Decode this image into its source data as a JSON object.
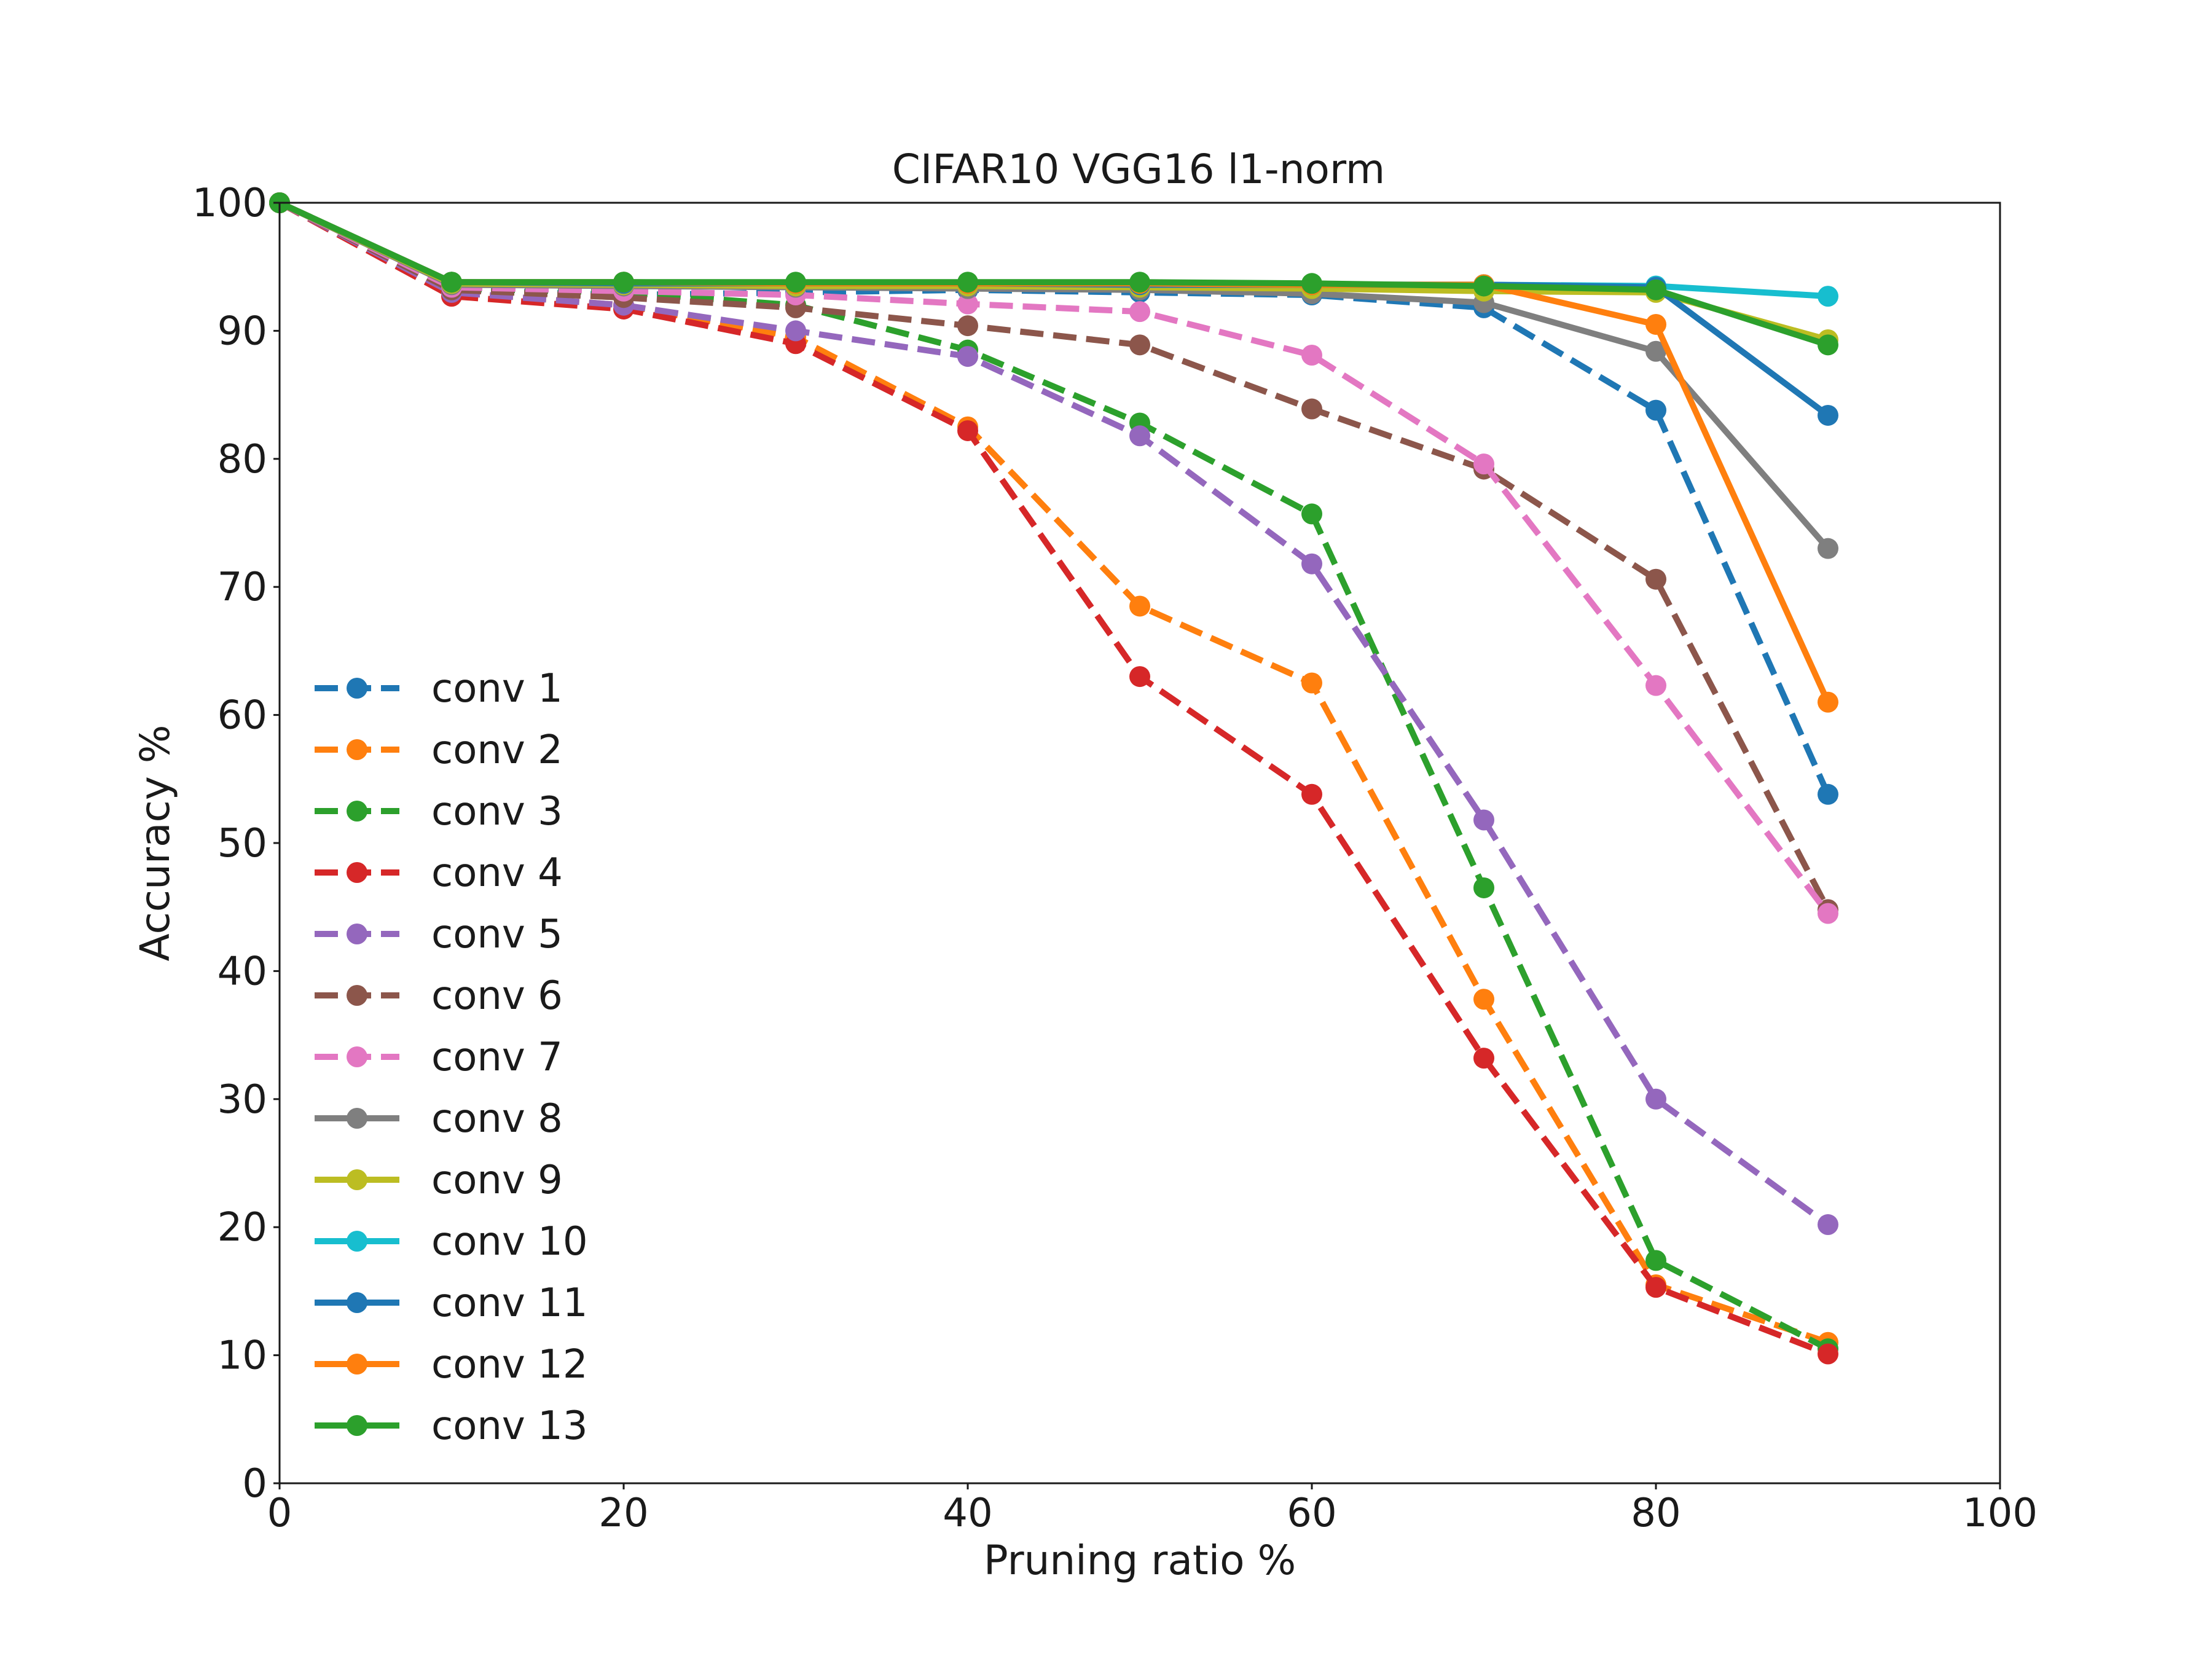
{
  "chart_data": {
    "type": "line",
    "title": "CIFAR10 VGG16 l1-norm",
    "xlabel": "Pruning ratio %",
    "ylabel": "Accuracy %",
    "xlim": [
      0,
      100
    ],
    "ylim": [
      0,
      100
    ],
    "xticks": [
      "0",
      "20",
      "40",
      "60",
      "80",
      "100"
    ],
    "yticks": [
      "0",
      "10",
      "20",
      "30",
      "40",
      "50",
      "60",
      "70",
      "80",
      "90",
      "100"
    ],
    "grid": false,
    "legend_position": "lower-left",
    "x": [
      0,
      10,
      20,
      30,
      40,
      50,
      60,
      70,
      80,
      90
    ],
    "series": [
      {
        "name": "conv 1",
        "color": "#1f77b4",
        "style": "dashed",
        "values": [
          100,
          93.2,
          92.8,
          93.0,
          93.2,
          93.0,
          92.8,
          91.8,
          83.8,
          53.8
        ]
      },
      {
        "name": "conv 2",
        "color": "#ff7f0e",
        "style": "dashed",
        "values": [
          100,
          93.0,
          92.0,
          89.5,
          82.5,
          68.5,
          62.5,
          37.8,
          15.5,
          11.0
        ]
      },
      {
        "name": "conv 3",
        "color": "#2ca02c",
        "style": "dashed",
        "values": [
          100,
          93.3,
          93.0,
          92.0,
          88.5,
          82.8,
          75.7,
          46.5,
          17.4,
          10.5
        ]
      },
      {
        "name": "conv 4",
        "color": "#d62728",
        "style": "dashed",
        "values": [
          100,
          92.7,
          91.7,
          89.0,
          82.2,
          63.0,
          53.8,
          33.2,
          15.3,
          10.1
        ]
      },
      {
        "name": "conv 5",
        "color": "#9467bd",
        "style": "dashed",
        "values": [
          100,
          93.0,
          92.0,
          90.0,
          88.0,
          81.8,
          71.8,
          51.8,
          30.0,
          20.2
        ]
      },
      {
        "name": "conv 6",
        "color": "#8c564b",
        "style": "dashed",
        "values": [
          100,
          93.2,
          92.6,
          91.8,
          90.4,
          88.9,
          83.9,
          79.2,
          70.6,
          44.8
        ]
      },
      {
        "name": "conv 7",
        "color": "#e377c2",
        "style": "dashed",
        "values": [
          100,
          93.4,
          93.1,
          92.8,
          92.1,
          91.5,
          88.1,
          79.6,
          62.3,
          44.5
        ]
      },
      {
        "name": "conv 8",
        "color": "#7f7f7f",
        "style": "solid",
        "values": [
          100,
          93.6,
          93.5,
          93.4,
          93.3,
          93.2,
          92.9,
          92.2,
          88.4,
          73.0
        ]
      },
      {
        "name": "conv 9",
        "color": "#bcbd22",
        "style": "solid",
        "values": [
          100,
          93.7,
          93.6,
          93.5,
          93.5,
          93.4,
          93.3,
          93.1,
          93.0,
          89.3
        ]
      },
      {
        "name": "conv 10",
        "color": "#17becf",
        "style": "solid",
        "values": [
          100,
          93.8,
          93.8,
          93.7,
          93.7,
          93.7,
          93.6,
          93.6,
          93.5,
          92.7
        ]
      },
      {
        "name": "conv 11",
        "color": "#1f77b4",
        "style": "solid",
        "values": [
          100,
          93.8,
          93.7,
          93.7,
          93.7,
          93.6,
          93.6,
          93.6,
          93.4,
          83.4
        ]
      },
      {
        "name": "conv 12",
        "color": "#ff7f0e",
        "style": "solid",
        "values": [
          100,
          93.8,
          93.8,
          93.7,
          93.7,
          93.7,
          93.6,
          93.6,
          90.5,
          61.0
        ]
      },
      {
        "name": "conv 13",
        "color": "#2ca02c",
        "style": "solid",
        "values": [
          100,
          93.8,
          93.8,
          93.8,
          93.8,
          93.8,
          93.7,
          93.5,
          93.2,
          88.9
        ]
      }
    ]
  }
}
